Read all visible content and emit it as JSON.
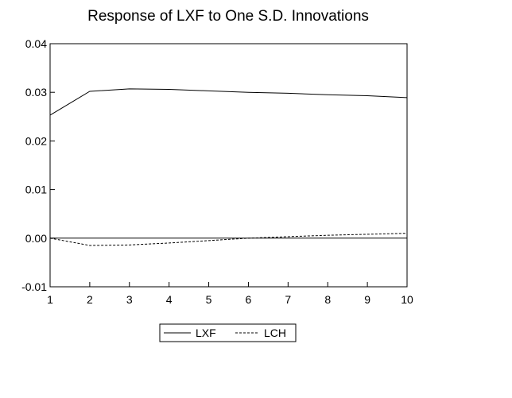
{
  "chart_data": {
    "type": "line",
    "title": "Response of LXF to One S.D. Innovations",
    "x": [
      1,
      2,
      3,
      4,
      5,
      6,
      7,
      8,
      9,
      10
    ],
    "xticks": [
      "1",
      "2",
      "3",
      "4",
      "5",
      "6",
      "7",
      "8",
      "9",
      "10"
    ],
    "xlim": [
      1,
      10
    ],
    "ylim": [
      -0.01,
      0.04
    ],
    "yticks": [
      "-0.01",
      "0.00",
      "0.01",
      "0.02",
      "0.03",
      "0.04"
    ],
    "ytick_values": [
      -0.01,
      0.0,
      0.01,
      0.02,
      0.03,
      0.04
    ],
    "zero_line": true,
    "grid": false,
    "legend_position": "bottom-center",
    "series": [
      {
        "name": "LXF",
        "style": "solid",
        "color": "#000000",
        "values": [
          0.0253,
          0.0302,
          0.0307,
          0.0306,
          0.0303,
          0.03,
          0.0298,
          0.0295,
          0.0293,
          0.0289
        ]
      },
      {
        "name": "LCH",
        "style": "dashed",
        "color": "#000000",
        "values": [
          0.0,
          -0.0015,
          -0.0014,
          -0.001,
          -0.0005,
          0.0,
          0.0003,
          0.0006,
          0.0008,
          0.001
        ]
      }
    ]
  }
}
